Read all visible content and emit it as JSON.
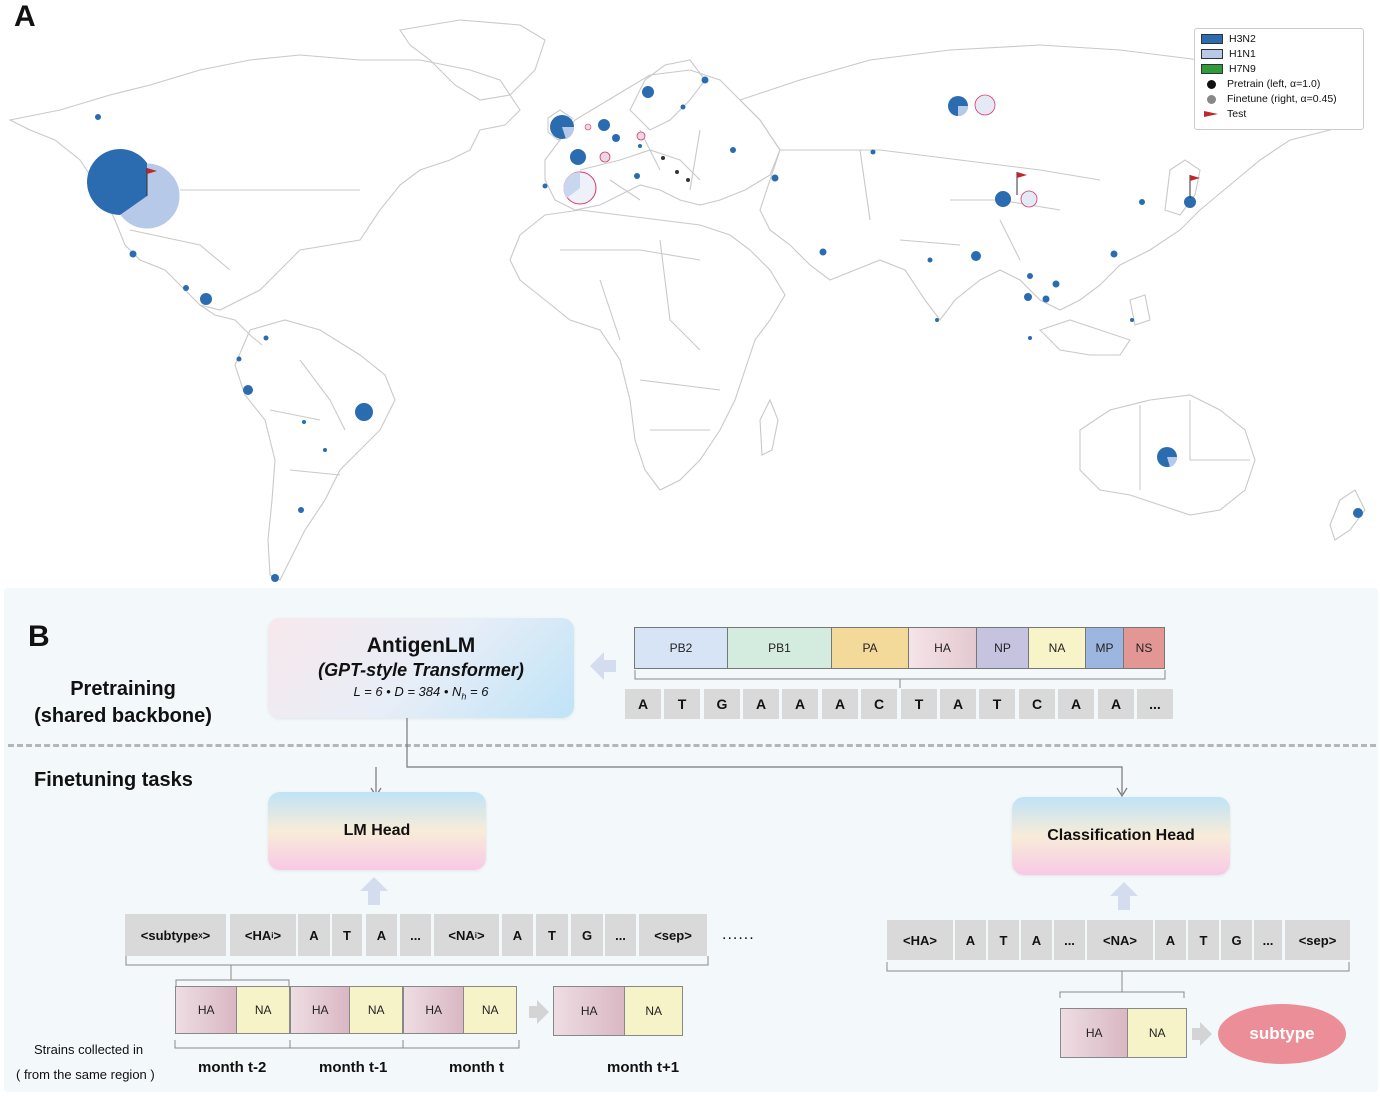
{
  "panel_a": {
    "letter": "A",
    "legend": [
      {
        "label": "H3N2",
        "color": "#2b6cb0",
        "kind": "rect"
      },
      {
        "label": "H1N1",
        "color": "#b7c9e8",
        "kind": "rect"
      },
      {
        "label": "H7N9",
        "color": "#2e9a3a",
        "kind": "rect"
      },
      {
        "label": "Pretrain (left, α=1.0)",
        "color": "#111111",
        "kind": "dot"
      },
      {
        "label": "Finetune (right, α=0.45)",
        "color": "#888888",
        "kind": "dot"
      },
      {
        "label": "Test",
        "color": "#c0262b",
        "kind": "flag"
      }
    ]
  },
  "panel_b": {
    "letter": "B",
    "pretraining_label_1": "Pretraining",
    "pretraining_label_2": "(shared backbone)",
    "finetuning_label": "Finetuning tasks",
    "model": {
      "name": "AntigenLM",
      "subtitle": "(GPT-style Transformer)",
      "params": "L = 6 • D = 384 • N",
      "params_sub": "h",
      "params_end": " = 6"
    },
    "segments": [
      {
        "label": "PB2",
        "color": "#d6e4f5"
      },
      {
        "label": "PB1",
        "color": "#d4ece0"
      },
      {
        "label": "PA",
        "color": "#f3d99a"
      },
      {
        "label": "HA",
        "color": "#f1dde2"
      },
      {
        "label": "NP",
        "color": "#c5c3df"
      },
      {
        "label": "NA",
        "color": "#f8f4c9"
      },
      {
        "label": "MP",
        "color": "#9db6e0"
      },
      {
        "label": "NS",
        "color": "#e39795"
      }
    ],
    "nucleotides": [
      "A",
      "T",
      "G",
      "A",
      "A",
      "A",
      "C",
      "T",
      "A",
      "T",
      "C",
      "A",
      "A",
      "..."
    ],
    "lm_head": "LM Head",
    "cls_head": "Classification Head",
    "lm_tokens": [
      {
        "t": "<subtype",
        "s": "x",
        "e": ">"
      },
      {
        "t": "<HA",
        "s": "i",
        "e": ">"
      },
      {
        "t": "A"
      },
      {
        "t": "T"
      },
      {
        "t": "A"
      },
      {
        "t": "..."
      },
      {
        "t": "<NA",
        "s": "i",
        "e": ">"
      },
      {
        "t": "A"
      },
      {
        "t": "T"
      },
      {
        "t": "G"
      },
      {
        "t": "..."
      },
      {
        "t": "<sep>"
      }
    ],
    "lm_ellipsis": "......",
    "cls_tokens": [
      "<HA>",
      "A",
      "T",
      "A",
      "...",
      "<NA>",
      "A",
      "T",
      "G",
      "...",
      "<sep>"
    ],
    "ha": "HA",
    "na": "NA",
    "strains_1": "Strains collected in",
    "strains_2": "( from the same  region )",
    "months": [
      "month t-2",
      "month t-1",
      "month t",
      "month t+1"
    ],
    "subtype": "subtype"
  }
}
